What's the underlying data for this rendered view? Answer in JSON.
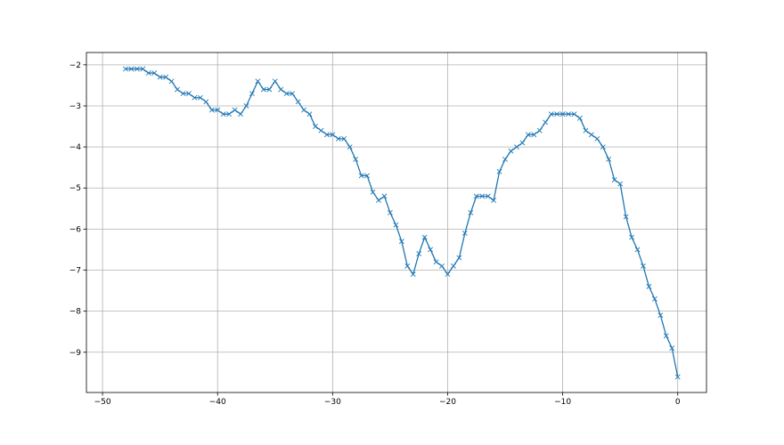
{
  "chart_data": {
    "type": "line",
    "title": "",
    "xlabel": "",
    "ylabel": "",
    "xlim": [
      -51.4,
      2.5
    ],
    "ylim": [
      -9.98,
      -1.7
    ],
    "grid": true,
    "marker": "x",
    "color": "#1f77b4",
    "xticks": [
      -50,
      -40,
      -30,
      -20,
      -10,
      0
    ],
    "yticks": [
      -2,
      -3,
      -4,
      -5,
      -6,
      -7,
      -8,
      -9
    ],
    "x_start": -48,
    "x_step": 0.5,
    "series": [
      {
        "values": [
          -2.1,
          -2.1,
          -2.1,
          -2.1,
          -2.2,
          -2.2,
          -2.3,
          -2.3,
          -2.4,
          -2.6,
          -2.7,
          -2.7,
          -2.8,
          -2.8,
          -2.9,
          -3.1,
          -3.1,
          -3.2,
          -3.2,
          -3.1,
          -3.2,
          -3.0,
          -2.7,
          -2.4,
          -2.6,
          -2.6,
          -2.4,
          -2.6,
          -2.7,
          -2.7,
          -2.9,
          -3.1,
          -3.2,
          -3.5,
          -3.6,
          -3.7,
          -3.7,
          -3.8,
          -3.8,
          -4.0,
          -4.3,
          -4.7,
          -4.7,
          -5.1,
          -5.3,
          -5.2,
          -5.6,
          -5.9,
          -6.3,
          -6.9,
          -7.1,
          -6.6,
          -6.2,
          -6.5,
          -6.8,
          -6.9,
          -7.1,
          -6.9,
          -6.7,
          -6.1,
          -5.6,
          -5.2,
          -5.2,
          -5.2,
          -5.3,
          -4.6,
          -4.3,
          -4.1,
          -4.0,
          -3.9,
          -3.7,
          -3.7,
          -3.6,
          -3.4,
          -3.2,
          -3.2,
          -3.2,
          -3.2,
          -3.2,
          -3.3,
          -3.6,
          -3.7,
          -3.8,
          -4.0,
          -4.3,
          -4.8,
          -4.9,
          -5.7,
          -6.2,
          -6.5,
          -6.9,
          -7.4,
          -7.7,
          -8.1,
          -8.6,
          -8.9,
          -9.6
        ]
      }
    ]
  }
}
